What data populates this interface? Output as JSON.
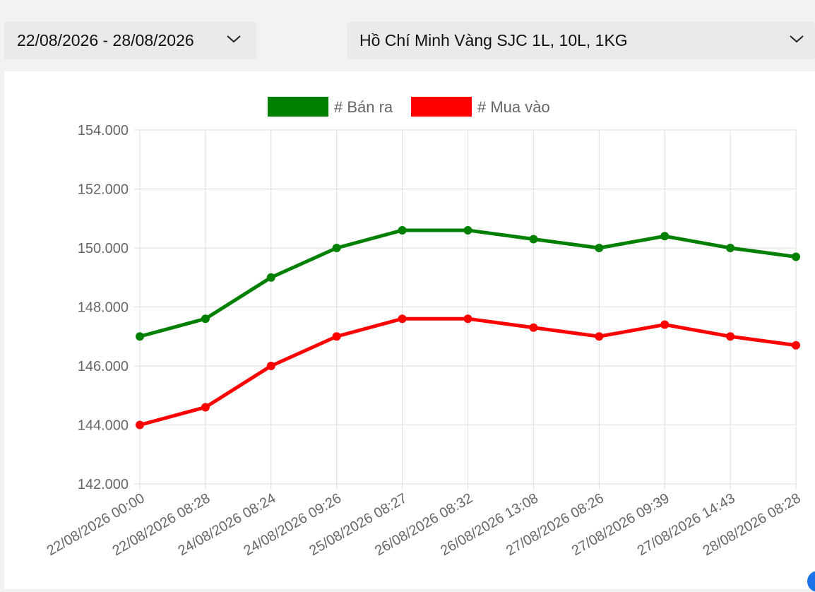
{
  "filters": {
    "date_range": "22/08/2026 - 28/08/2026",
    "product": "Hồ Chí Minh Vàng SJC 1L, 10L, 1KG"
  },
  "icons": {
    "dropdown": "chevron-down-icon"
  },
  "chart_data": {
    "type": "line",
    "x": [
      "22/08/2026 00:00",
      "22/08/2026 08:28",
      "24/08/2026 08:24",
      "24/08/2026 09:26",
      "25/08/2026 08:27",
      "26/08/2026 08:32",
      "26/08/2026 13:08",
      "27/08/2026 08:26",
      "27/08/2026 09:39",
      "27/08/2026 14:43",
      "28/08/2026 08:28"
    ],
    "series": [
      {
        "name": "# Bán ra",
        "color": "#008000",
        "values": [
          147000,
          147600,
          149000,
          150000,
          150600,
          150600,
          150300,
          150000,
          150400,
          150000,
          149700
        ]
      },
      {
        "name": "# Mua vào",
        "color": "#ff0000",
        "values": [
          144000,
          144600,
          146000,
          147000,
          147600,
          147600,
          147300,
          147000,
          147400,
          147000,
          146700
        ]
      }
    ],
    "ylim": [
      142000,
      154000
    ],
    "yticks": [
      "142.000",
      "144.000",
      "146.000",
      "148.000",
      "150.000",
      "152.000",
      "154.000"
    ],
    "grid": true,
    "legend": "top-center"
  }
}
